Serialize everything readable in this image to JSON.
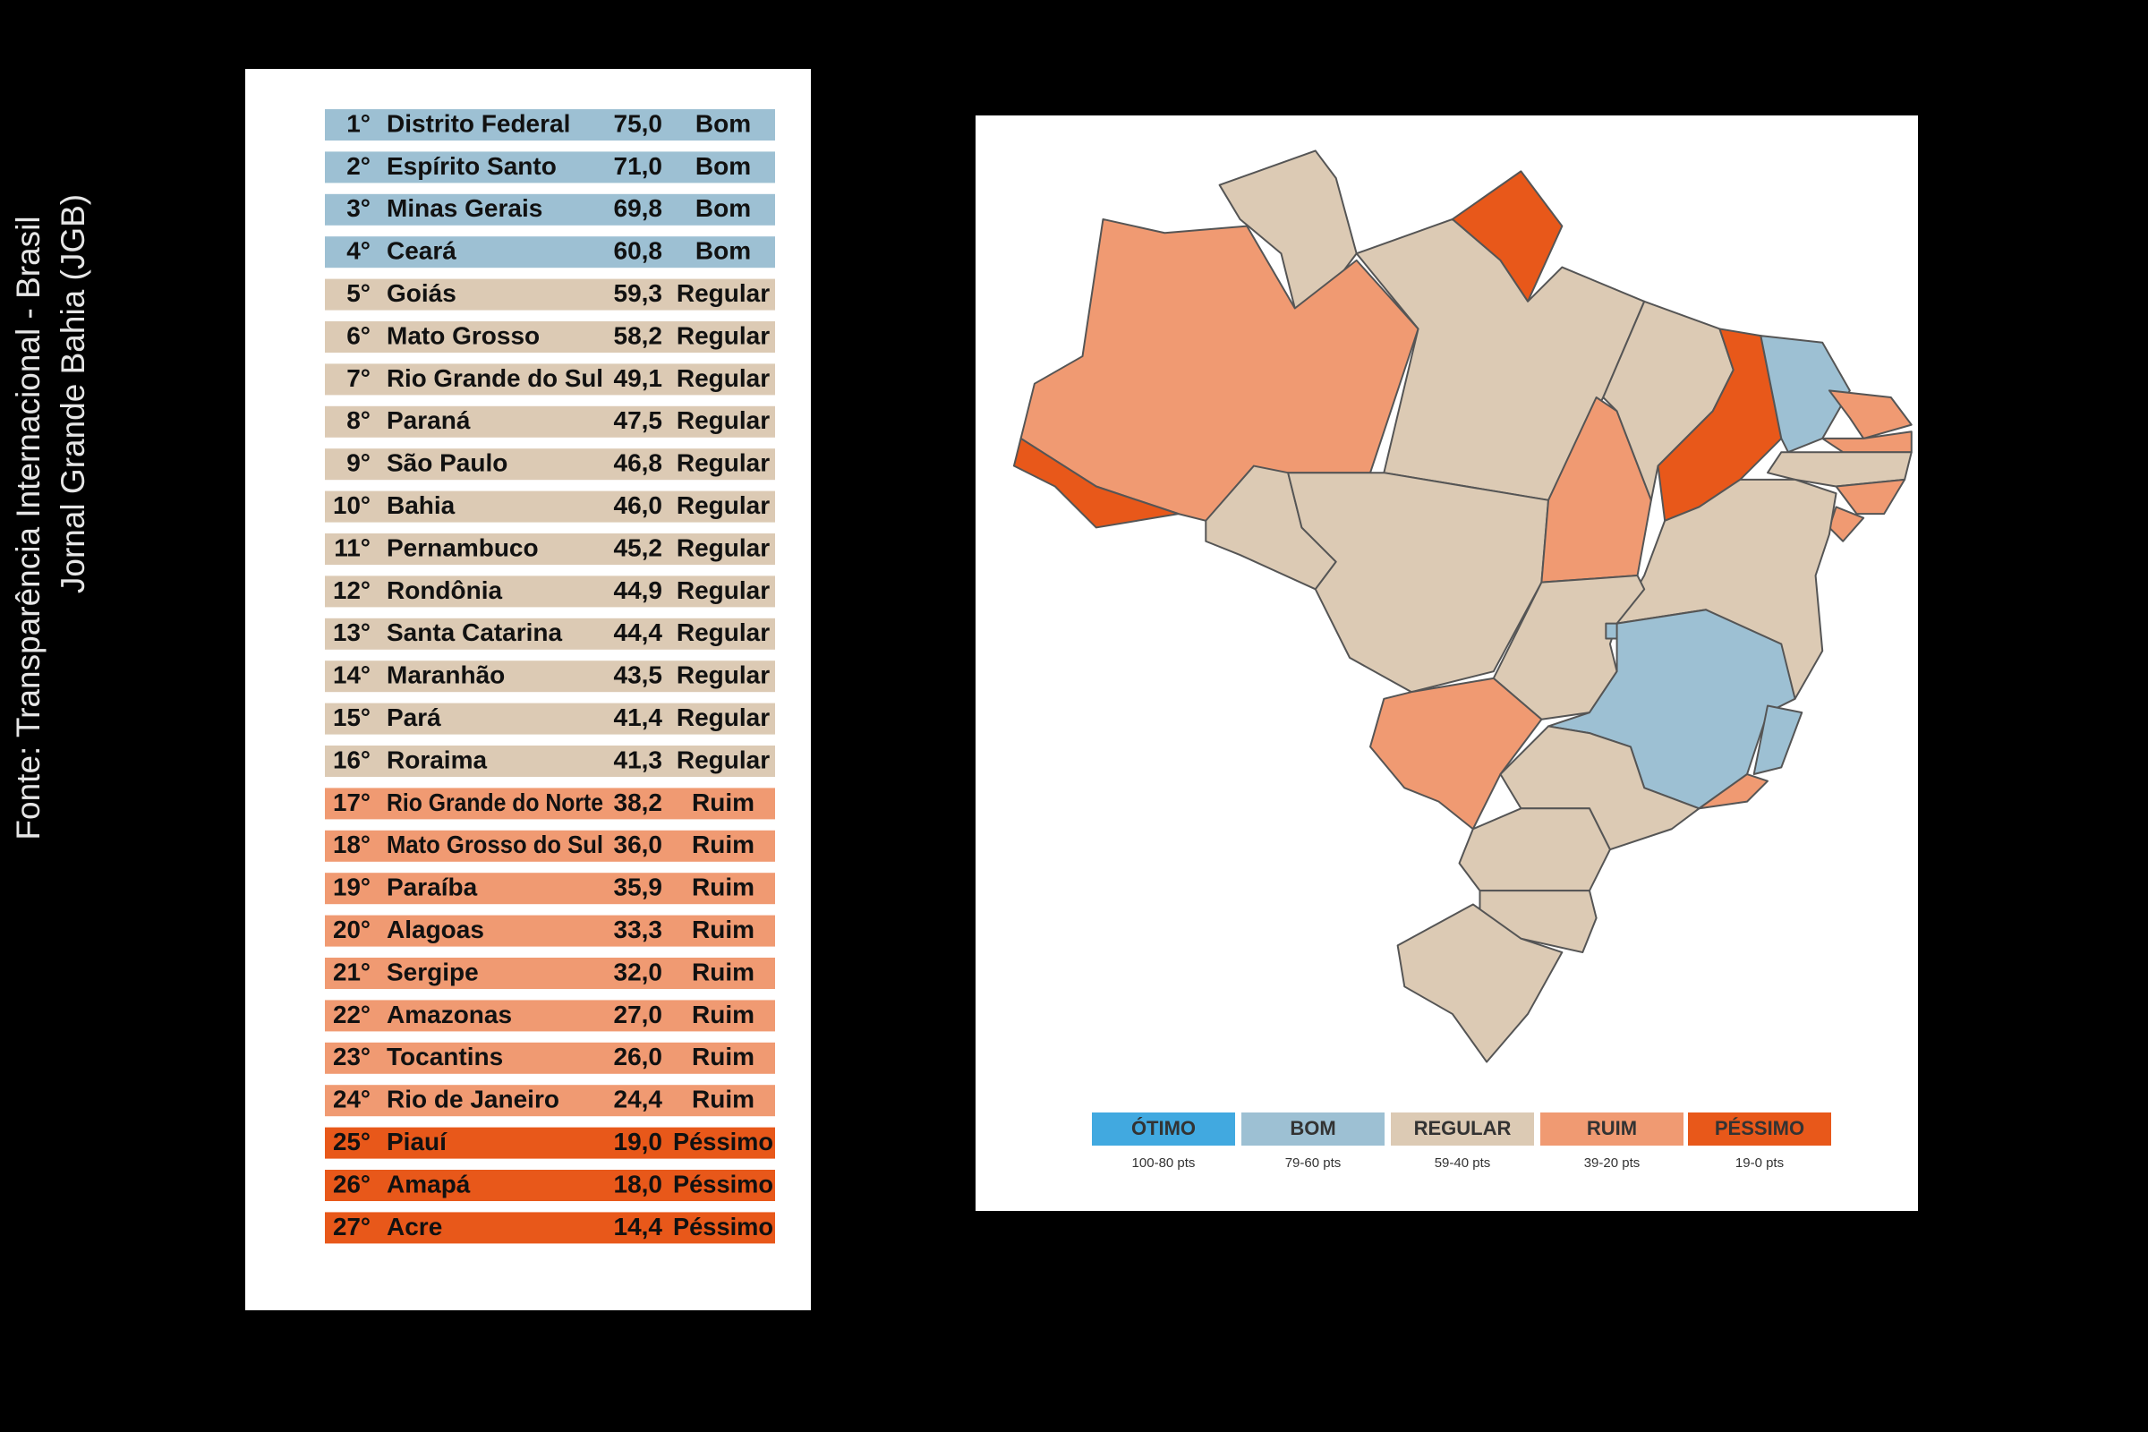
{
  "source": {
    "line1": "Fonte: Transparência Internacional - Brasil",
    "line2": "Jornal Grande Bahia (JGB)"
  },
  "table": {
    "rows": [
      {
        "rank": "1°",
        "name": "Distrito Federal",
        "score": "75,0",
        "rating": "Bom",
        "color": "#9dc0d3"
      },
      {
        "rank": "2°",
        "name": "Espírito Santo",
        "score": "71,0",
        "rating": "Bom",
        "color": "#9dc0d3"
      },
      {
        "rank": "3°",
        "name": "Minas Gerais",
        "score": "69,8",
        "rating": "Bom",
        "color": "#9dc0d3"
      },
      {
        "rank": "4°",
        "name": "Ceará",
        "score": "60,8",
        "rating": "Bom",
        "color": "#9dc0d3"
      },
      {
        "rank": "5°",
        "name": "Goiás",
        "score": "59,3",
        "rating": "Regular",
        "color": "#dccab4"
      },
      {
        "rank": "6°",
        "name": "Mato Grosso",
        "score": "58,2",
        "rating": "Regular",
        "color": "#dccab4"
      },
      {
        "rank": "7°",
        "name": "Rio Grande do Sul",
        "score": "49,1",
        "rating": "Regular",
        "color": "#dccab4"
      },
      {
        "rank": "8°",
        "name": "Paraná",
        "score": "47,5",
        "rating": "Regular",
        "color": "#dccab4"
      },
      {
        "rank": "9°",
        "name": "São Paulo",
        "score": "46,8",
        "rating": "Regular",
        "color": "#dccab4"
      },
      {
        "rank": "10°",
        "name": "Bahia",
        "score": "46,0",
        "rating": "Regular",
        "color": "#dccab4"
      },
      {
        "rank": "11°",
        "name": "Pernambuco",
        "score": "45,2",
        "rating": "Regular",
        "color": "#dccab4"
      },
      {
        "rank": "12°",
        "name": "Rondônia",
        "score": "44,9",
        "rating": "Regular",
        "color": "#dccab4"
      },
      {
        "rank": "13°",
        "name": "Santa Catarina",
        "score": "44,4",
        "rating": "Regular",
        "color": "#dccab4"
      },
      {
        "rank": "14°",
        "name": "Maranhão",
        "score": "43,5",
        "rating": "Regular",
        "color": "#dccab4"
      },
      {
        "rank": "15°",
        "name": "Pará",
        "score": "41,4",
        "rating": "Regular",
        "color": "#dccab4"
      },
      {
        "rank": "16°",
        "name": "Roraima",
        "score": "41,3",
        "rating": "Regular",
        "color": "#dccab4"
      },
      {
        "rank": "17°",
        "name": "Rio Grande do Norte",
        "score": "38,2",
        "rating": "Ruim",
        "color": "#f09a72"
      },
      {
        "rank": "18°",
        "name": "Mato Grosso do Sul",
        "score": "36,0",
        "rating": "Ruim",
        "color": "#f09a72"
      },
      {
        "rank": "19°",
        "name": "Paraíba",
        "score": "35,9",
        "rating": "Ruim",
        "color": "#f09a72"
      },
      {
        "rank": "20°",
        "name": "Alagoas",
        "score": "33,3",
        "rating": "Ruim",
        "color": "#f09a72"
      },
      {
        "rank": "21°",
        "name": "Sergipe",
        "score": "32,0",
        "rating": "Ruim",
        "color": "#f09a72"
      },
      {
        "rank": "22°",
        "name": "Amazonas",
        "score": "27,0",
        "rating": "Ruim",
        "color": "#f09a72"
      },
      {
        "rank": "23°",
        "name": "Tocantins",
        "score": "26,0",
        "rating": "Ruim",
        "color": "#f09a72"
      },
      {
        "rank": "24°",
        "name": "Rio de Janeiro",
        "score": "24,4",
        "rating": "Ruim",
        "color": "#f09a72"
      },
      {
        "rank": "25°",
        "name": "Piauí",
        "score": "19,0",
        "rating": "Péssimo",
        "color": "#e8581a"
      },
      {
        "rank": "26°",
        "name": "Amapá",
        "score": "18,0",
        "rating": "Péssimo",
        "color": "#e8581a"
      },
      {
        "rank": "27°",
        "name": "Acre",
        "score": "14,4",
        "rating": "Péssimo",
        "color": "#e8581a"
      }
    ]
  },
  "legend": {
    "items": [
      {
        "label": "ÓTIMO",
        "range": "100-80 pts",
        "color": "#41a9e0"
      },
      {
        "label": "BOM",
        "range": "79-60 pts",
        "color": "#9dc0d3"
      },
      {
        "label": "REGULAR",
        "range": "59-40 pts",
        "color": "#dccab4"
      },
      {
        "label": "RUIM",
        "range": "39-20 pts",
        "color": "#f09a72"
      },
      {
        "label": "PÉSSIMO",
        "range": "19-0 pts",
        "color": "#e8581a"
      }
    ]
  }
}
